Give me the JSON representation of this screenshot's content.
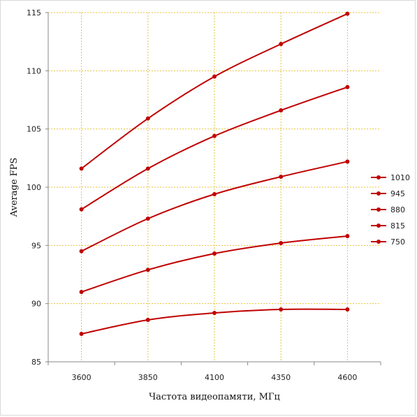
{
  "chart_data": {
    "type": "line",
    "xlabel": "Частота видеопамяти, МГц",
    "ylabel": "Average FPS",
    "categories": [
      "3600",
      "3850",
      "4100",
      "4350",
      "4600"
    ],
    "ylim": [
      85,
      115
    ],
    "yticks": [
      85,
      90,
      95,
      100,
      105,
      110,
      115
    ],
    "grid": true,
    "legend_position": "right",
    "series_color": "#c00000",
    "gridline_color": "#e6c23a",
    "series": [
      {
        "name": "1010",
        "values": [
          101.6,
          105.9,
          109.5,
          112.3,
          114.9
        ]
      },
      {
        "name": "945",
        "values": [
          98.1,
          101.6,
          104.4,
          106.6,
          108.6
        ]
      },
      {
        "name": "880",
        "values": [
          94.5,
          97.3,
          99.4,
          100.9,
          102.2
        ]
      },
      {
        "name": "815",
        "values": [
          91.0,
          92.9,
          94.3,
          95.2,
          95.8
        ]
      },
      {
        "name": "750",
        "values": [
          87.4,
          88.6,
          89.2,
          89.5,
          89.5
        ]
      }
    ]
  }
}
